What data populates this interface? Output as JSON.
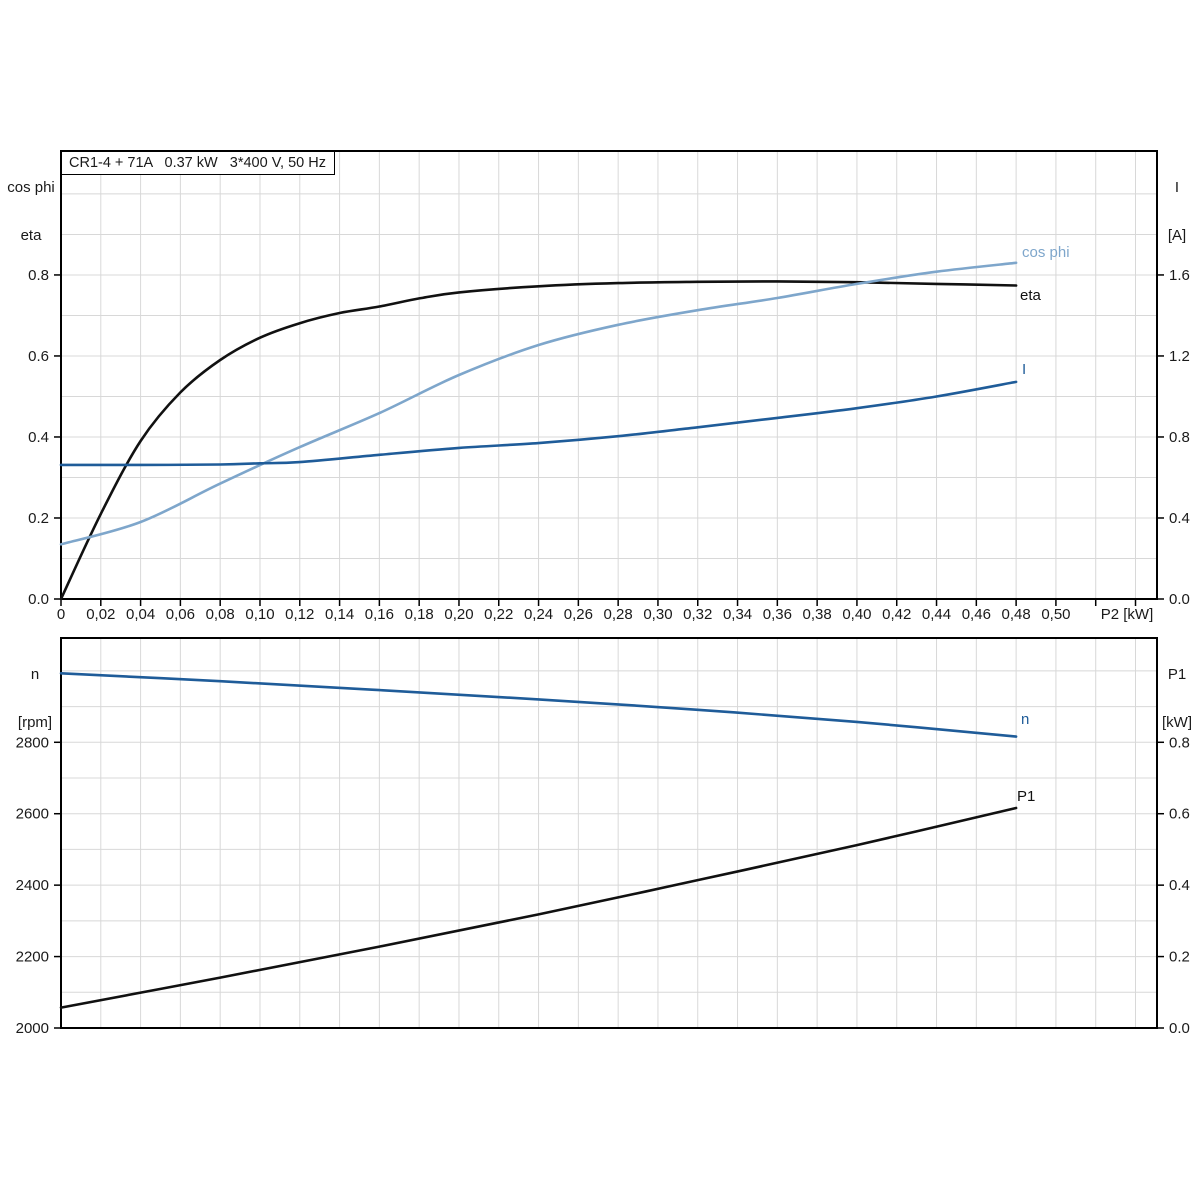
{
  "title": "CR1-4 + 71A   0.37 kW   3*400 V, 50 Hz",
  "chart_data": [
    {
      "type": "line",
      "title": "Motor efficiency, power factor and current vs shaft power",
      "xlabel": "P2 [kW]",
      "xlim": [
        0,
        0.5508
      ],
      "x_grid_step": 0.02,
      "x_tick_labels": [
        "0",
        "0,02",
        "0,04",
        "0,06",
        "0,08",
        "0,10",
        "0,12",
        "0,14",
        "0,16",
        "0,18",
        "0,20",
        "0,22",
        "0,24",
        "0,26",
        "0,28",
        "0,30",
        "0,32",
        "0,34",
        "0,36",
        "0,38",
        "0,40",
        "0,42",
        "0,44",
        "0,46",
        "0,48",
        "0,50"
      ],
      "left_axis": {
        "title_lines": [
          "cos phi",
          "eta"
        ],
        "lim": [
          0,
          1.106
        ],
        "grid_step": 0.1,
        "tick_values": [
          0,
          0.2,
          0.4,
          0.6,
          0.8
        ],
        "tick_labels": [
          "0.0",
          "0.2",
          "0.4",
          "0.6",
          "0.8"
        ]
      },
      "right_axis": {
        "title_lines": [
          "I",
          "[A]"
        ],
        "lim": [
          0,
          2.212
        ],
        "tick_values": [
          0,
          0.4,
          0.8,
          1.2,
          1.6
        ],
        "tick_labels": [
          "0.0",
          "0.4",
          "0.8",
          "1.2",
          "1.6"
        ]
      },
      "legend_position": "end-of-curve",
      "grid": true,
      "series": [
        {
          "name": "eta",
          "axis": "left",
          "color": "#111111",
          "x": [
            0,
            0.02,
            0.04,
            0.06,
            0.08,
            0.1,
            0.12,
            0.14,
            0.16,
            0.18,
            0.2,
            0.24,
            0.28,
            0.32,
            0.36,
            0.4,
            0.44,
            0.48
          ],
          "y": [
            0,
            0.21,
            0.39,
            0.51,
            0.59,
            0.645,
            0.681,
            0.706,
            0.722,
            0.742,
            0.757,
            0.772,
            0.78,
            0.783,
            0.784,
            0.782,
            0.778,
            0.774
          ]
        },
        {
          "name": "cos phi",
          "axis": "left",
          "color": "#7ea6cb",
          "x": [
            0,
            0.04,
            0.08,
            0.12,
            0.16,
            0.2,
            0.24,
            0.28,
            0.32,
            0.36,
            0.4,
            0.44,
            0.48
          ],
          "y": [
            0.135,
            0.19,
            0.285,
            0.375,
            0.459,
            0.553,
            0.627,
            0.677,
            0.713,
            0.743,
            0.778,
            0.808,
            0.83
          ]
        },
        {
          "name": "I",
          "axis": "right",
          "color": "#1f5c99",
          "x": [
            0,
            0.04,
            0.08,
            0.1,
            0.12,
            0.16,
            0.2,
            0.24,
            0.28,
            0.32,
            0.36,
            0.4,
            0.44,
            0.48
          ],
          "y": [
            0.662,
            0.662,
            0.664,
            0.67,
            0.676,
            0.712,
            0.746,
            0.77,
            0.804,
            0.848,
            0.894,
            0.942,
            1.0,
            1.072
          ]
        }
      ]
    },
    {
      "type": "line",
      "title": "Motor speed and input power vs shaft power",
      "xlabel": "",
      "xlim": [
        0,
        0.5508
      ],
      "x_grid_step": 0.02,
      "x_tick_labels": [],
      "left_axis": {
        "title_lines": [
          "n",
          "[rpm]"
        ],
        "lim": [
          2000,
          3092
        ],
        "grid_step": 100,
        "tick_values": [
          2000,
          2200,
          2400,
          2600,
          2800
        ],
        "tick_labels": [
          "2000",
          "2200",
          "2400",
          "2600",
          "2800"
        ]
      },
      "right_axis": {
        "title_lines": [
          "P1",
          "[kW]"
        ],
        "lim": [
          0,
          1.092
        ],
        "tick_values": [
          0,
          0.2,
          0.4,
          0.6,
          0.8
        ],
        "tick_labels": [
          "0.0",
          "0.2",
          "0.4",
          "0.6",
          "0.8"
        ]
      },
      "legend_position": "end-of-curve",
      "grid": true,
      "series": [
        {
          "name": "n",
          "axis": "left",
          "color": "#1f5c99",
          "x": [
            0,
            0.08,
            0.16,
            0.24,
            0.32,
            0.4,
            0.48
          ],
          "y": [
            2993,
            2971,
            2946,
            2920,
            2891,
            2857,
            2816
          ]
        },
        {
          "name": "P1",
          "axis": "right",
          "color": "#111111",
          "x": [
            0,
            0.08,
            0.16,
            0.24,
            0.32,
            0.4,
            0.48
          ],
          "y": [
            0.057,
            0.141,
            0.228,
            0.318,
            0.414,
            0.512,
            0.616
          ]
        }
      ]
    }
  ]
}
